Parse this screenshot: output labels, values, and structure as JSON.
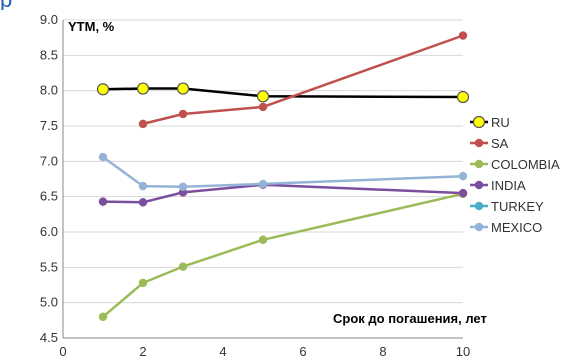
{
  "header": {
    "partial_text": "р"
  },
  "chart_data": {
    "type": "line",
    "ylabel": "YTM, %",
    "xlabel": "Срок до погашения, лет",
    "xlim": [
      0,
      10
    ],
    "ylim": [
      4.5,
      9.0
    ],
    "x_ticks": [
      "0",
      "2",
      "4",
      "6",
      "8",
      "10"
    ],
    "y_ticks": [
      "4.5",
      "5.0",
      "5.5",
      "6.0",
      "6.5",
      "7.0",
      "7.5",
      "8.0",
      "8.5",
      "9.0"
    ],
    "legend_position": "right",
    "series": [
      {
        "name": "RU",
        "color": "#000000",
        "marker_fill": "#ffff00",
        "marker_stroke": "#555555",
        "points": [
          [
            1,
            8.02
          ],
          [
            2,
            8.03
          ],
          [
            3,
            8.03
          ],
          [
            5,
            7.92
          ],
          [
            10,
            7.91
          ]
        ]
      },
      {
        "name": "SA",
        "color": "#c0504d",
        "marker_fill": "#c0504d",
        "marker_stroke": "#c0504d",
        "points": [
          [
            2,
            7.53
          ],
          [
            3,
            7.67
          ],
          [
            5,
            7.77
          ],
          [
            10,
            8.78
          ]
        ]
      },
      {
        "name": "COLOMBIA",
        "color": "#9bbb59",
        "marker_fill": "#9bbb59",
        "marker_stroke": "#9bbb59",
        "points": [
          [
            1,
            4.8
          ],
          [
            2,
            5.28
          ],
          [
            3,
            5.51
          ],
          [
            5,
            5.89
          ],
          [
            10,
            6.54
          ]
        ]
      },
      {
        "name": "INDIA",
        "color": "#7b4f9d",
        "marker_fill": "#7b4f9d",
        "marker_stroke": "#7b4f9d",
        "points": [
          [
            1,
            6.43
          ],
          [
            2,
            6.42
          ],
          [
            3,
            6.56
          ],
          [
            5,
            6.67
          ],
          [
            10,
            6.55
          ]
        ]
      },
      {
        "name": "TURKEY",
        "color": "#4bacc6",
        "marker_fill": "#4bacc6",
        "marker_stroke": "#4bacc6",
        "points": []
      },
      {
        "name": "MEXICO",
        "color": "#95b3d7",
        "marker_fill": "#95b3d7",
        "marker_stroke": "#95b3d7",
        "points": [
          [
            1,
            7.06
          ],
          [
            2,
            6.65
          ],
          [
            3,
            6.64
          ],
          [
            5,
            6.68
          ],
          [
            10,
            6.79
          ]
        ]
      }
    ]
  }
}
